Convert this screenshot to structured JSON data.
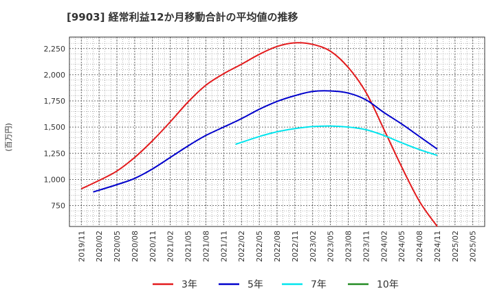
{
  "chart_data": {
    "type": "line",
    "title": "[9903]  経常利益12か月移動合計の平均値の推移",
    "ylabel": "(百万円)",
    "xlabel": "",
    "x_ticks": [
      "2019/11",
      "2020/02",
      "2020/05",
      "2020/08",
      "2020/11",
      "2021/02",
      "2021/05",
      "2021/08",
      "2021/11",
      "2022/02",
      "2022/05",
      "2022/08",
      "2022/11",
      "2023/02",
      "2023/05",
      "2023/08",
      "2023/11",
      "2024/02",
      "2024/05",
      "2024/08",
      "2024/11",
      "2025/02",
      "2025/05"
    ],
    "y_ticks": [
      "750",
      "1,000",
      "1,250",
      "1,500",
      "1,750",
      "2,000",
      "2,250"
    ],
    "ylim": [
      550,
      2360
    ],
    "grid": true,
    "legend_position": "bottom",
    "series": [
      {
        "name": "3年",
        "color": "#e31a1c",
        "x": [
          "2019/11",
          "2020/02",
          "2020/05",
          "2020/08",
          "2020/11",
          "2021/02",
          "2021/05",
          "2021/08",
          "2021/11",
          "2022/02",
          "2022/05",
          "2022/08",
          "2022/11",
          "2023/02",
          "2023/05",
          "2023/08",
          "2023/11",
          "2024/02",
          "2024/05",
          "2024/08",
          "2024/11"
        ],
        "y": [
          910,
          990,
          1080,
          1210,
          1370,
          1550,
          1740,
          1900,
          2010,
          2100,
          2195,
          2270,
          2305,
          2290,
          2225,
          2070,
          1830,
          1480,
          1120,
          790,
          550
        ]
      },
      {
        "name": "5年",
        "color": "#0000cc",
        "x": [
          "2020/01",
          "2020/05",
          "2020/08",
          "2020/11",
          "2021/02",
          "2021/05",
          "2021/08",
          "2021/11",
          "2022/02",
          "2022/05",
          "2022/08",
          "2022/11",
          "2023/02",
          "2023/05",
          "2023/08",
          "2023/11",
          "2024/02",
          "2024/05",
          "2024/08",
          "2024/11"
        ],
        "y": [
          880,
          950,
          1010,
          1100,
          1210,
          1320,
          1420,
          1500,
          1580,
          1670,
          1745,
          1800,
          1840,
          1845,
          1825,
          1760,
          1640,
          1530,
          1410,
          1290
        ]
      },
      {
        "name": "7年",
        "color": "#00e5ee",
        "x": [
          "2022/01",
          "2022/05",
          "2022/08",
          "2022/11",
          "2023/02",
          "2023/05",
          "2023/08",
          "2023/11",
          "2024/02",
          "2024/05",
          "2024/08",
          "2024/11"
        ],
        "y": [
          1335,
          1410,
          1455,
          1485,
          1505,
          1510,
          1500,
          1475,
          1420,
          1350,
          1285,
          1230
        ]
      },
      {
        "name": "10年",
        "color": "#228b22",
        "x": [],
        "y": []
      }
    ]
  }
}
